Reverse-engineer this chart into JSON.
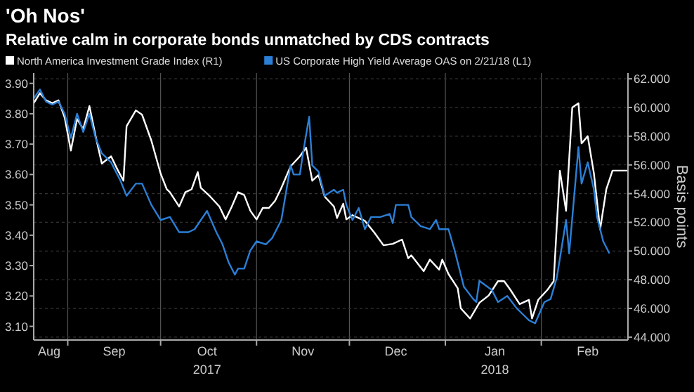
{
  "chart_data": {
    "type": "line",
    "title": "'Oh Nos'",
    "subtitle": "Relative calm in corporate bonds unmatched by CDS contracts",
    "y2label": "Basis points",
    "legend": "top left",
    "grid": true,
    "xlim": [
      "2017-08-21",
      "2018-03-01"
    ],
    "xticks": [
      {
        "value": "2017-08-26",
        "label": "Aug"
      },
      {
        "value": "2017-09-01",
        "label": null
      },
      {
        "value": "2017-09-16",
        "label": "Sep"
      },
      {
        "value": "2017-10-01",
        "label": null
      },
      {
        "value": "2017-10-16",
        "label": "Oct\n2017"
      },
      {
        "value": "2017-11-01",
        "label": null
      },
      {
        "value": "2017-11-16",
        "label": "Nov"
      },
      {
        "value": "2017-12-01",
        "label": null
      },
      {
        "value": "2017-12-16",
        "label": "Dec"
      },
      {
        "value": "2018-01-01",
        "label": null
      },
      {
        "value": "2018-01-17",
        "label": "Jan\n2018"
      },
      {
        "value": "2018-02-01",
        "label": null
      },
      {
        "value": "2018-02-16",
        "label": "Feb"
      }
    ],
    "ylim": [
      3.055,
      3.934
    ],
    "yticks": [
      {
        "value": 3.1,
        "label": "3.10"
      },
      {
        "value": 3.2,
        "label": "3.20"
      },
      {
        "value": 3.3,
        "label": "3.30"
      },
      {
        "value": 3.4,
        "label": "3.40"
      },
      {
        "value": 3.5,
        "label": "3.50"
      },
      {
        "value": 3.6,
        "label": "3.60"
      },
      {
        "value": 3.7,
        "label": "3.70"
      },
      {
        "value": 3.8,
        "label": "3.80"
      },
      {
        "value": 3.9,
        "label": "3.90"
      }
    ],
    "y2lim": [
      43.8,
      62.4
    ],
    "y2ticks": [
      {
        "value": 44,
        "label": "44.000"
      },
      {
        "value": 46,
        "label": "46.000"
      },
      {
        "value": 48,
        "label": "48.000"
      },
      {
        "value": 50,
        "label": "50.000"
      },
      {
        "value": 52,
        "label": "52.000"
      },
      {
        "value": 54,
        "label": "54.000"
      },
      {
        "value": 56,
        "label": "56.000"
      },
      {
        "value": 58,
        "label": "58.000"
      },
      {
        "value": 60,
        "label": "60.000"
      },
      {
        "value": 62,
        "label": "62.000"
      }
    ],
    "series": [
      {
        "name": "North America Investment Grade Index (R1)",
        "color": "#ffffff",
        "axis": "y2",
        "x": [
          "2017-08-21",
          "2017-08-23",
          "2017-08-25",
          "2017-08-27",
          "2017-08-29",
          "2017-08-31",
          "2017-09-02",
          "2017-09-04",
          "2017-09-06",
          "2017-09-08",
          "2017-09-10",
          "2017-09-12",
          "2017-09-15",
          "2017-09-17",
          "2017-09-19",
          "2017-09-20",
          "2017-09-23",
          "2017-09-25",
          "2017-09-28",
          "2017-10-01",
          "2017-10-03",
          "2017-10-04",
          "2017-10-07",
          "2017-10-09",
          "2017-10-11",
          "2017-10-13",
          "2017-10-14",
          "2017-10-17",
          "2017-10-20",
          "2017-10-22",
          "2017-10-24",
          "2017-10-26",
          "2017-10-28",
          "2017-10-30",
          "2017-11-01",
          "2017-11-03",
          "2017-11-05",
          "2017-11-07",
          "2017-11-09",
          "2017-11-12",
          "2017-11-15",
          "2017-11-17",
          "2017-11-19",
          "2017-11-21",
          "2017-11-23",
          "2017-11-26",
          "2017-11-27",
          "2017-11-29",
          "2017-11-30",
          "2017-12-02",
          "2017-12-06",
          "2017-12-09",
          "2017-12-12",
          "2017-12-15",
          "2017-12-18",
          "2017-12-20",
          "2017-12-21",
          "2017-12-25",
          "2017-12-27",
          "2017-12-30",
          "2017-12-31",
          "2018-01-02",
          "2018-01-05",
          "2018-01-06",
          "2018-01-09",
          "2018-01-12",
          "2018-01-15",
          "2018-01-18",
          "2018-01-20",
          "2018-01-22",
          "2018-01-25",
          "2018-01-28",
          "2018-01-29",
          "2018-01-31",
          "2018-02-03",
          "2018-02-05",
          "2018-02-07",
          "2018-02-09",
          "2018-02-11",
          "2018-02-13",
          "2018-02-14",
          "2018-02-16",
          "2018-02-18",
          "2018-02-20",
          "2018-02-22",
          "2018-02-24",
          "2018-03-01"
        ],
        "values": [
          60.3,
          61.0,
          60.5,
          60.3,
          60.5,
          59.3,
          57.0,
          59.2,
          58.5,
          60.1,
          58.0,
          56.1,
          56.6,
          55.7,
          54.9,
          58.7,
          59.8,
          59.5,
          57.7,
          55.4,
          54.3,
          54.1,
          53.1,
          54.1,
          54.3,
          55.5,
          54.4,
          53.8,
          53.1,
          52.2,
          53.1,
          54.1,
          53.9,
          52.8,
          52.2,
          53.0,
          53.0,
          53.5,
          54.4,
          55.9,
          56.6,
          57.2,
          54.9,
          55.3,
          53.8,
          53.1,
          52.3,
          53.3,
          52.2,
          52.5,
          52.1,
          51.3,
          50.4,
          50.5,
          50.8,
          49.5,
          49.7,
          48.6,
          49.4,
          48.7,
          49.4,
          48.4,
          47.4,
          46.0,
          45.3,
          46.4,
          46.9,
          47.9,
          47.9,
          47.3,
          46.3,
          46.6,
          45.3,
          46.6,
          47.3,
          47.9,
          55.6,
          52.8,
          60.0,
          60.3,
          57.5,
          58.0,
          55.4,
          51.5,
          54.3,
          55.6,
          55.6
        ]
      },
      {
        "name": "US Corporate High Yield Average OAS on 2/21/18 (L1)",
        "color": "#2b7fd6",
        "axis": "y",
        "x": [
          "2017-08-21",
          "2017-08-23",
          "2017-08-25",
          "2017-08-27",
          "2017-08-29",
          "2017-08-31",
          "2017-09-02",
          "2017-09-04",
          "2017-09-06",
          "2017-09-08",
          "2017-09-10",
          "2017-09-12",
          "2017-09-15",
          "2017-09-18",
          "2017-09-20",
          "2017-09-23",
          "2017-09-25",
          "2017-09-28",
          "2017-10-01",
          "2017-10-04",
          "2017-10-07",
          "2017-10-10",
          "2017-10-12",
          "2017-10-16",
          "2017-10-19",
          "2017-10-21",
          "2017-10-23",
          "2017-10-25",
          "2017-10-26",
          "2017-10-28",
          "2017-10-30",
          "2017-11-01",
          "2017-11-04",
          "2017-11-06",
          "2017-11-09",
          "2017-11-12",
          "2017-11-13",
          "2017-11-15",
          "2017-11-16",
          "2017-11-18",
          "2017-11-19",
          "2017-11-21",
          "2017-11-23",
          "2017-11-26",
          "2017-11-27",
          "2017-11-29",
          "2017-11-30",
          "2017-12-02",
          "2017-12-04",
          "2017-12-06",
          "2017-12-08",
          "2017-12-11",
          "2017-12-14",
          "2017-12-15",
          "2017-12-16",
          "2017-12-20",
          "2017-12-21",
          "2017-12-24",
          "2017-12-27",
          "2017-12-29",
          "2017-12-30",
          "2018-01-02",
          "2018-01-04",
          "2018-01-07",
          "2018-01-10",
          "2018-01-11",
          "2018-01-12",
          "2018-01-16",
          "2018-01-18",
          "2018-01-21",
          "2018-01-24",
          "2018-01-26",
          "2018-01-28",
          "2018-01-30",
          "2018-02-02",
          "2018-02-04",
          "2018-02-06",
          "2018-02-09",
          "2018-02-10",
          "2018-02-13",
          "2018-02-14",
          "2018-02-16",
          "2018-02-18",
          "2018-02-19",
          "2018-02-21",
          "2018-02-23"
        ],
        "values": [
          3.85,
          3.88,
          3.84,
          3.83,
          3.84,
          3.8,
          3.72,
          3.8,
          3.74,
          3.8,
          3.72,
          3.67,
          3.64,
          3.58,
          3.53,
          3.57,
          3.57,
          3.5,
          3.45,
          3.46,
          3.41,
          3.41,
          3.42,
          3.48,
          3.41,
          3.37,
          3.31,
          3.27,
          3.29,
          3.29,
          3.35,
          3.38,
          3.37,
          3.39,
          3.45,
          3.63,
          3.6,
          3.6,
          3.67,
          3.79,
          3.63,
          3.61,
          3.53,
          3.55,
          3.54,
          3.55,
          3.5,
          3.45,
          3.49,
          3.42,
          3.46,
          3.46,
          3.47,
          3.44,
          3.5,
          3.5,
          3.46,
          3.43,
          3.42,
          3.45,
          3.42,
          3.42,
          3.35,
          3.23,
          3.19,
          3.18,
          3.25,
          3.22,
          3.18,
          3.2,
          3.16,
          3.14,
          3.12,
          3.11,
          3.18,
          3.19,
          3.26,
          3.45,
          3.34,
          3.69,
          3.57,
          3.64,
          3.55,
          3.46,
          3.38,
          3.34
        ]
      }
    ]
  }
}
